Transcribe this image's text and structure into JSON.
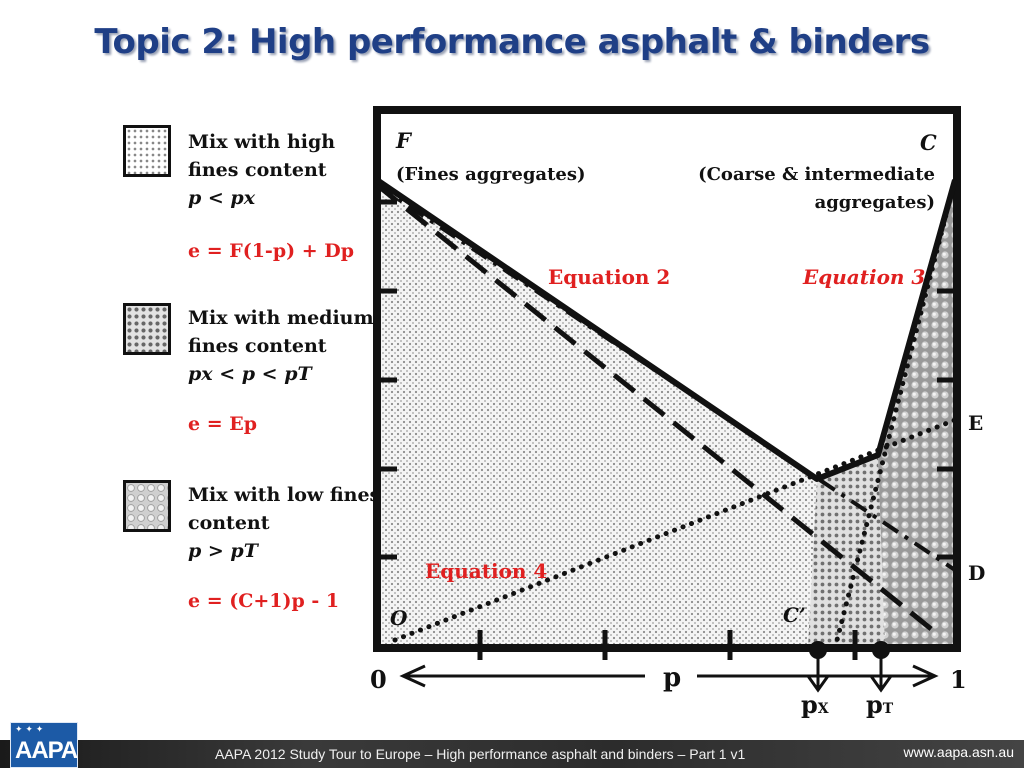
{
  "title": "Topic 2: High performance asphalt & binders",
  "legend": [
    {
      "lines": [
        "Mix with high",
        "fines content"
      ],
      "condition": "p < px",
      "equation": "e = F(1-p) + Dp"
    },
    {
      "lines": [
        "Mix with medium",
        "fines content"
      ],
      "condition": "px < p < pT",
      "equation": "e = Ep"
    },
    {
      "lines": [
        "Mix with low fines",
        "content"
      ],
      "condition": "p > pT",
      "equation": "e = (C+1)p - 1"
    }
  ],
  "diagram": {
    "F_label": "F",
    "F_desc": "(Fines aggregates)",
    "C_label": "C",
    "C_desc_1": "(Coarse & intermediate",
    "C_desc_2": "aggregates)",
    "eq2": "Equation 2",
    "eq3": "Equation 3",
    "eq4": "Equation 4",
    "E_label": "E",
    "D_label": "D",
    "O_label": "O",
    "Cprime_label": "C’",
    "x0": "0",
    "x1": "1",
    "p_axis": "p",
    "px_label": "p",
    "px_sub": "X",
    "pT_label": "p",
    "pT_sub": "T"
  },
  "footer": {
    "text": "AAPA 2012 Study Tour to Europe – High performance asphalt and binders – Part 1 v1",
    "url": "www.aapa.asn.au",
    "logo": "AAPA",
    "logo_stars": "✦ ✦ ✦"
  }
}
